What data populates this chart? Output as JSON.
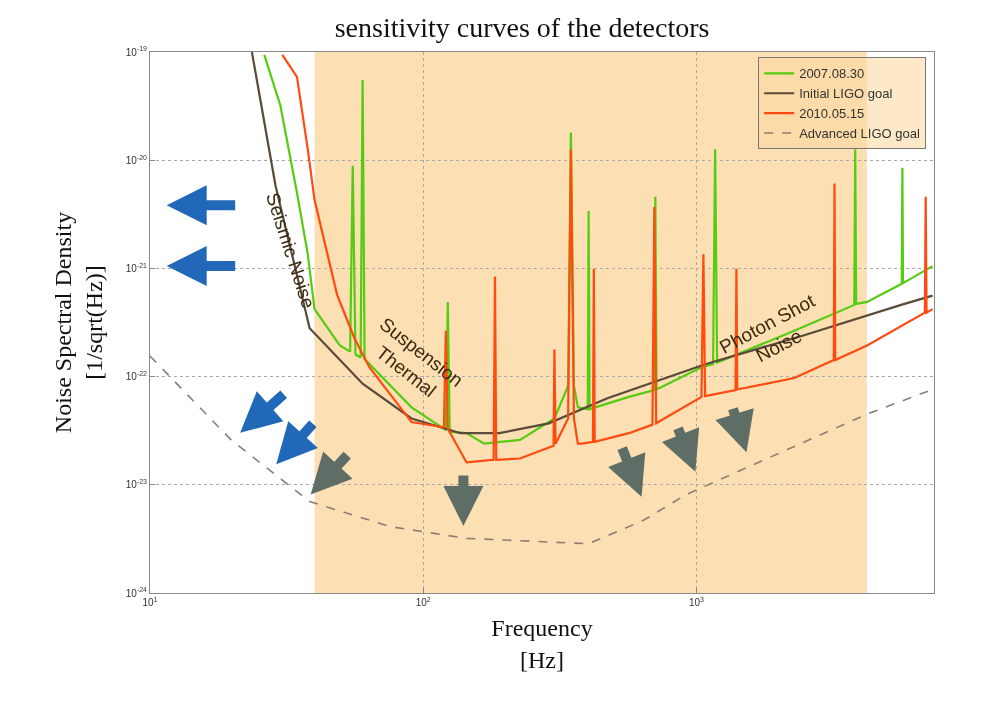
{
  "chart_data": {
    "type": "line",
    "title": "sensitivity curves of the detectors",
    "xlabel": "Frequency\n[Hz]",
    "ylabel": "Noise Spectral Density\n[1/sqrt(Hz)]",
    "log": "xy",
    "grid": true,
    "legend": "top right",
    "marker": "none",
    "xlim": [
      10,
      7400
    ],
    "ylim": [
      1e-24,
      1e-19
    ],
    "xticks": [
      {
        "value": 10,
        "label": "10$^{1}$"
      },
      {
        "value": 100,
        "label": "10$^{2}$"
      },
      {
        "value": 1000,
        "label": "10$^{3}$"
      }
    ],
    "yticks": [
      {
        "value": 1e-24,
        "label": "10$^{-24}$"
      },
      {
        "value": 1e-23,
        "label": "10$^{-23}$"
      },
      {
        "value": 1e-22,
        "label": "10$^{-22}$"
      },
      {
        "value": 1e-21,
        "label": "10$^{-21}$"
      },
      {
        "value": 1e-20,
        "label": "10$^{-20}$"
      },
      {
        "value": 1e-19,
        "label": "10$^{-19}$"
      }
    ],
    "bands": [
      {
        "axis": "x",
        "from": 40,
        "to": 4200,
        "color": "#fcd9a4"
      }
    ],
    "annotations": [
      "Seismic Noise",
      "Suspension\nThermal",
      "Photon Shot\nNoise"
    ],
    "series": [
      {
        "name": "2007.08.30",
        "color": "#55cc11",
        "line_style": "solid",
        "x": [
          26.2,
          30.0,
          34.5,
          37.8,
          40.0,
          49.5,
          54.0,
          55.2,
          56.5,
          59.0,
          60.0,
          61.0,
          90.6,
          121,
          123,
          125,
          144,
          167,
          226,
          302,
          339,
          347,
          356,
          368,
          400,
          403,
          406,
          566,
          700,
          707,
          714,
          1043,
          1150,
          1170,
          1190,
          2280,
          3780,
          3810,
          3840,
          4210,
          5640,
          5670,
          5700,
          7310
        ],
        "values": [
          9.4e-20,
          3.2e-20,
          5e-21,
          1.35e-21,
          4.2e-22,
          1.94e-22,
          1.7e-22,
          8.9e-21,
          1.6e-22,
          1.5e-22,
          5.5e-20,
          1.45e-22,
          5.2e-23,
          3.2e-23,
          4.9e-22,
          3.1e-23,
          3e-23,
          2.4e-23,
          2.6e-23,
          4.1e-23,
          8.2e-23,
          1.8e-20,
          8.2e-23,
          5.2e-23,
          5e-23,
          3.4e-21,
          5e-23,
          6.5e-23,
          7.5e-23,
          4.6e-21,
          7.6e-23,
          1.22e-22,
          1.3e-22,
          1.26e-20,
          1.35e-22,
          2.65e-22,
          4.6e-22,
          1.26e-20,
          4.7e-22,
          4.9e-22,
          7.2e-22,
          8.5e-21,
          7.3e-22,
          1.05e-21
        ]
      },
      {
        "name": "Initial LIGO goal",
        "color": "#5a4a3a",
        "line_style": "solid",
        "x": [
          23.6,
          28.8,
          38.4,
          60,
          90.6,
          137,
          190,
          288,
          472,
          1077,
          2460,
          5610,
          7310
        ],
        "values": [
          1e-19,
          5.8e-21,
          2.8e-22,
          8.6e-23,
          4.1e-23,
          3e-23,
          3e-23,
          3.7e-23,
          6.3e-23,
          1.3e-22,
          2.4e-22,
          4.6e-22,
          5.6e-22
        ]
      },
      {
        "name": "2010.05.15",
        "color": "#ff4a10",
        "line_style": "solid",
        "x": [
          30.5,
          34.5,
          37.8,
          40.0,
          48.4,
          56.1,
          63.5,
          90.6,
          119,
          121,
          123,
          144,
          181,
          183,
          185,
          226,
          300,
          302,
          305,
          339,
          347,
          356,
          368,
          381,
          418,
          421,
          424,
          566,
          690,
          701,
          712,
          1043,
          1060,
          1075,
          1390,
          1400,
          1410,
          2280,
          3180,
          3200,
          3220,
          4210,
          6850,
          6900,
          6950,
          7310
        ],
        "values": [
          9.4e-20,
          5.9e-20,
          1.26e-20,
          4.3e-21,
          5.7e-22,
          2.24e-22,
          1.22e-22,
          3.8e-23,
          3.4e-23,
          2.65e-22,
          3.3e-23,
          1.61e-23,
          1.7e-23,
          8.4e-22,
          1.7e-23,
          1.75e-23,
          2.3e-23,
          1.78e-22,
          2.4e-23,
          4.1e-23,
          1.26e-20,
          4.1e-23,
          2.4e-23,
          2.4e-23,
          2.5e-23,
          9.9e-22,
          2.5e-23,
          3e-23,
          3.6e-23,
          3.7e-21,
          3.7e-23,
          6.5e-23,
          1.35e-21,
          6.6e-23,
          7.5e-23,
          9.9e-22,
          7.6e-23,
          9.7e-23,
          1.42e-22,
          6.1e-21,
          1.42e-22,
          1.94e-22,
          3.9e-22,
          4.6e-21,
          3.9e-22,
          4.2e-22
        ]
      },
      {
        "name": "Advanced LIGO goal",
        "color": "#8a7f72",
        "line_style": "dashed",
        "x": [
          10,
          19.8,
          38.4,
          76,
          144,
          403,
          640,
          914,
          4210,
          7310
        ],
        "values": [
          1.55e-22,
          2.6e-23,
          7e-24,
          4.1e-24,
          3.2e-24,
          2.85e-24,
          4.7e-24,
          8.1e-24,
          4.5e-23,
          7.6e-23
        ]
      }
    ]
  }
}
